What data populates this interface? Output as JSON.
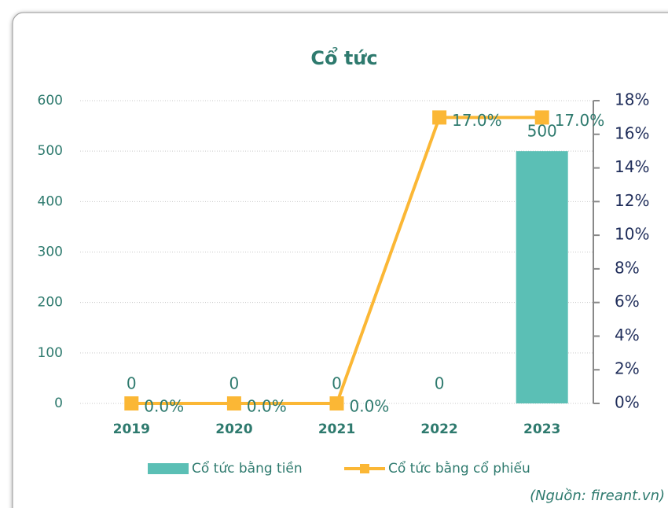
{
  "chart_data": {
    "type": "bar",
    "title": "Cổ tức",
    "categories": [
      "2019",
      "2020",
      "2021",
      "2022",
      "2023"
    ],
    "series": [
      {
        "name": "Cổ tức bằng tiền",
        "type": "bar",
        "color": "#5bbfb5",
        "values": [
          0,
          0,
          0,
          0,
          500
        ]
      },
      {
        "name": "Cổ tức bằng cổ phiếu",
        "type": "line",
        "axis": "y2",
        "color": "#fbb735",
        "values": [
          0,
          0,
          0,
          17,
          17
        ],
        "value_labels": [
          "0.0%",
          "0.0%",
          "0.0%",
          "17.0%",
          "17.0%"
        ]
      }
    ],
    "ylim": [
      0,
      600
    ],
    "yticks": [
      0,
      100,
      200,
      300,
      400,
      500,
      600
    ],
    "y2lim": [
      0,
      18
    ],
    "y2ticks": [
      {
        "value": 0,
        "label": "0%"
      },
      {
        "value": 2,
        "label": "2%"
      },
      {
        "value": 4,
        "label": "4%"
      },
      {
        "value": 6,
        "label": "6%"
      },
      {
        "value": 8,
        "label": "8%"
      },
      {
        "value": 10,
        "label": "10%"
      },
      {
        "value": 12,
        "label": "12%"
      },
      {
        "value": 14,
        "label": "14%"
      },
      {
        "value": 16,
        "label": "16%"
      },
      {
        "value": 18,
        "label": "18%"
      }
    ],
    "grid": true,
    "legend": "bottom",
    "source": "(Nguồn: fireant.vn)"
  }
}
